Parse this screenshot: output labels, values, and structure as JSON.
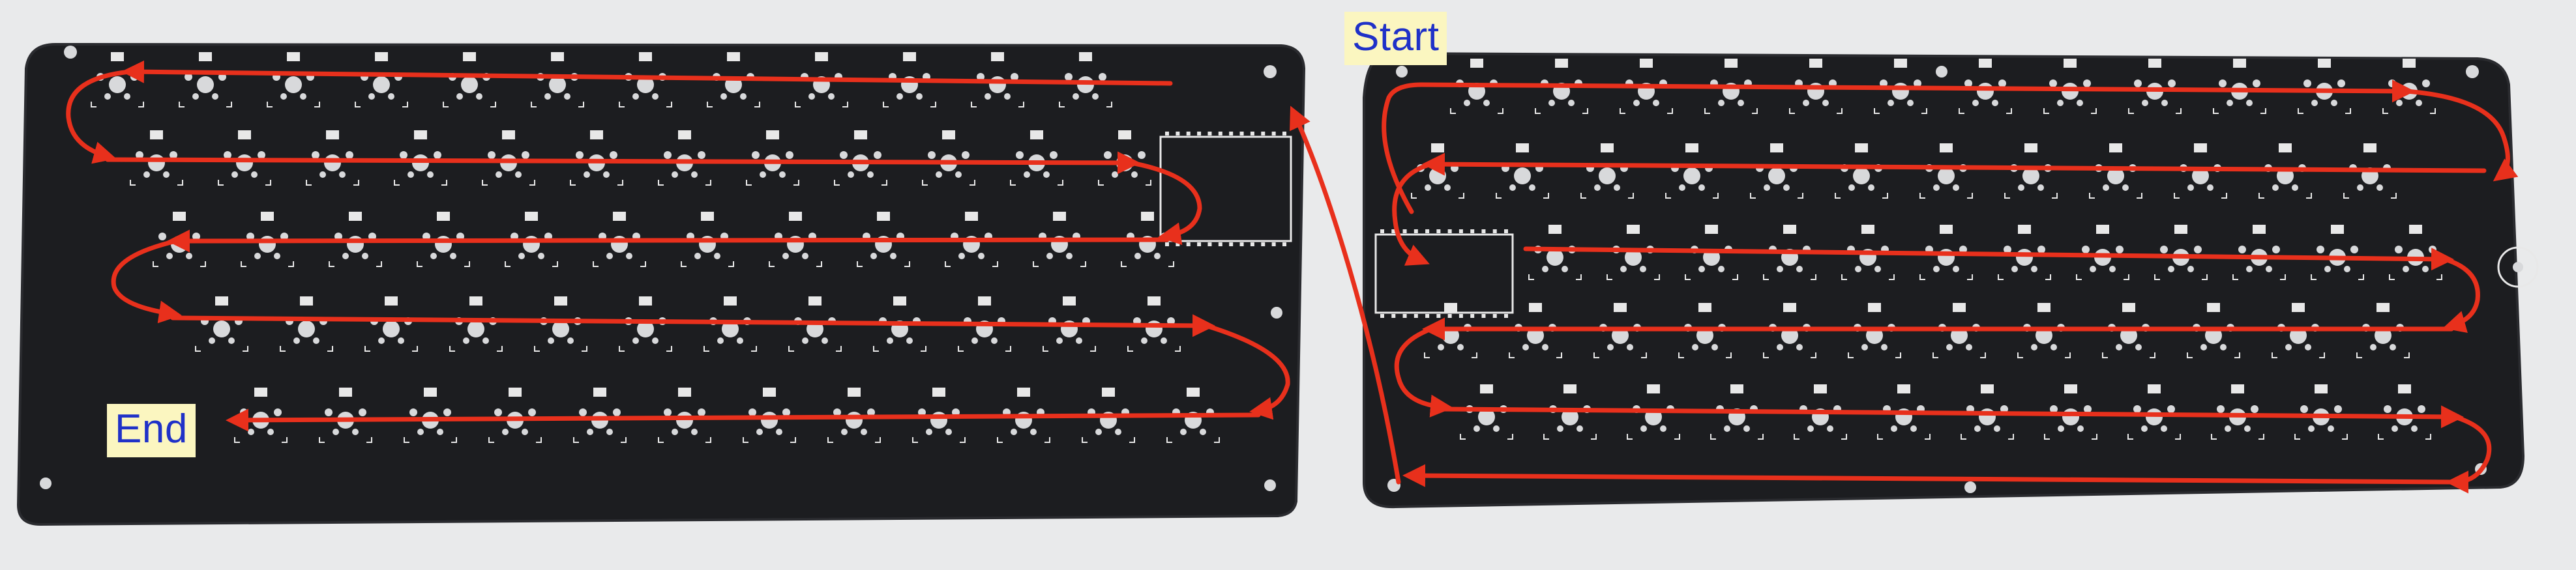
{
  "labels": {
    "start": "Start",
    "end": "End"
  },
  "colors": {
    "background": "#e9eaeb",
    "pcb": "#1c1d20",
    "pcb_edge": "#2a2b2f",
    "hole": "#d8d9db",
    "silkscreen": "#e8e8e8",
    "arrow": "#e8301c",
    "label_background": "#fbf6c0",
    "label_text": "#1f31c8"
  },
  "boards": {
    "left": {
      "rows": [
        12,
        12,
        12,
        12,
        12
      ]
    },
    "right": {
      "rows": [
        12,
        12,
        12,
        12,
        12
      ]
    }
  }
}
